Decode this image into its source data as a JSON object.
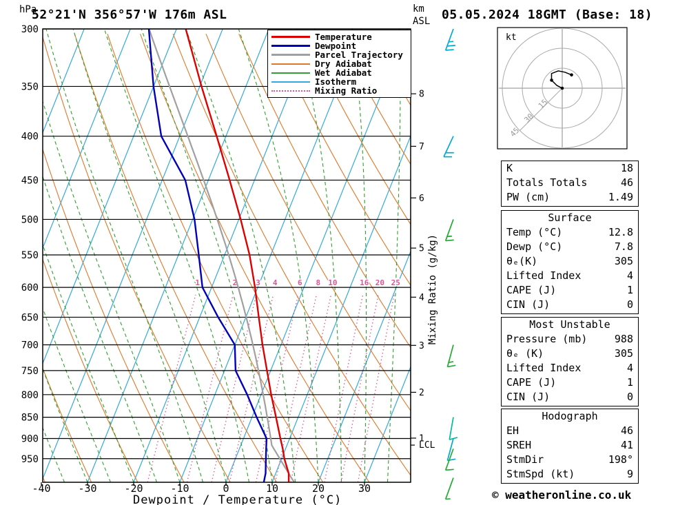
{
  "header": {
    "station_title": "52°21'N 356°57'W 176m ASL",
    "datetime_title": "05.05.2024 18GMT (Base: 18)",
    "pressure_unit": "hPa",
    "altitude_unit_km": "km",
    "altitude_unit_asl": "ASL"
  },
  "footer": {
    "copyright": "© weatheronline.co.uk"
  },
  "axes": {
    "x_title": "Dewpoint / Temperature (°C)",
    "y_right_title": "Mixing Ratio (g/kg)",
    "pressure_ticks_hpa": [
      300,
      350,
      400,
      450,
      500,
      550,
      600,
      650,
      700,
      750,
      800,
      850,
      900,
      950
    ],
    "temp_ticks_c": [
      -40,
      -30,
      -20,
      -10,
      0,
      10,
      20,
      30
    ],
    "km_ticks": [
      1,
      2,
      3,
      4,
      5,
      6,
      7,
      8
    ],
    "lcl_label": "LCL"
  },
  "legend": [
    {
      "label": "Temperature",
      "color": "#dd0000",
      "style": "solid",
      "weight": 3
    },
    {
      "label": "Dewpoint",
      "color": "#0000bb",
      "style": "solid",
      "weight": 3
    },
    {
      "label": "Parcel Trajectory",
      "color": "#a0a0a0",
      "style": "solid",
      "weight": 3
    },
    {
      "label": "Dry Adiabat",
      "color": "#e07828",
      "style": "solid",
      "weight": 2
    },
    {
      "label": "Wet Adiabat",
      "color": "#2da02d",
      "style": "solid",
      "weight": 2
    },
    {
      "label": "Isotherm",
      "color": "#33aadd",
      "style": "solid",
      "weight": 2
    },
    {
      "label": "Mixing Ratio",
      "color": "#dd5599",
      "style": "dotted",
      "weight": 2
    }
  ],
  "colors": {
    "temperature": "#dd0000",
    "dewpoint": "#0000bb",
    "parcel": "#a0a0a0",
    "dry_adiabat": "#e07828",
    "wet_adiabat": "#2da02d",
    "isotherm": "#33aadd",
    "mixing_ratio": "#dd5599",
    "grid": "#000000"
  },
  "chart_data": {
    "type": "skewt-log-p-sounding",
    "pressure_range_hpa": [
      300,
      1012
    ],
    "temp_axis_range_c": [
      -40,
      40
    ],
    "temperature_profile_p_t": [
      [
        1012,
        13.6
      ],
      [
        988,
        12.8
      ],
      [
        950,
        10.6
      ],
      [
        925,
        9.4
      ],
      [
        900,
        8.0
      ],
      [
        850,
        5.2
      ],
      [
        800,
        2.2
      ],
      [
        750,
        -0.8
      ],
      [
        700,
        -4.0
      ],
      [
        650,
        -7.2
      ],
      [
        600,
        -10.6
      ],
      [
        550,
        -14.6
      ],
      [
        500,
        -19.6
      ],
      [
        450,
        -25.4
      ],
      [
        400,
        -32.0
      ],
      [
        350,
        -39.6
      ],
      [
        300,
        -48.0
      ]
    ],
    "dewpoint_profile_p_t": [
      [
        1012,
        8.2
      ],
      [
        988,
        7.8
      ],
      [
        950,
        6.6
      ],
      [
        925,
        5.8
      ],
      [
        900,
        5.0
      ],
      [
        850,
        1.0
      ],
      [
        800,
        -3.0
      ],
      [
        750,
        -7.6
      ],
      [
        700,
        -10.0
      ],
      [
        650,
        -16.0
      ],
      [
        600,
        -22.0
      ],
      [
        550,
        -25.6
      ],
      [
        500,
        -29.6
      ],
      [
        450,
        -35.0
      ],
      [
        400,
        -44.0
      ],
      [
        350,
        -50.0
      ],
      [
        300,
        -56.0
      ]
    ],
    "parcel_surface": {
      "pressure_hpa": 988,
      "temp_c": 12.8,
      "dewpoint_c": 7.8
    },
    "lcl_pressure_hpa": 916,
    "isotherm_step_c": 10,
    "dry_adiabat_step_c": 10,
    "wet_adiabat_step_c": 5,
    "mixing_ratio_lines_gkg": [
      1,
      2,
      3,
      4,
      6,
      8,
      10,
      16,
      20,
      25
    ],
    "wind_barbs": [
      {
        "pressure_hpa": 300,
        "speed_kt": 25,
        "dir_deg": 200,
        "color": "#00aacc"
      },
      {
        "pressure_hpa": 400,
        "speed_kt": 20,
        "dir_deg": 205,
        "color": "#00aacc"
      },
      {
        "pressure_hpa": 500,
        "speed_kt": 15,
        "dir_deg": 200,
        "color": "#22aa33"
      },
      {
        "pressure_hpa": 700,
        "speed_kt": 15,
        "dir_deg": 195,
        "color": "#22aa33"
      },
      {
        "pressure_hpa": 850,
        "speed_kt": 10,
        "dir_deg": 190,
        "color": "#00bb99"
      },
      {
        "pressure_hpa": 900,
        "speed_kt": 10,
        "dir_deg": 195,
        "color": "#00aacc"
      },
      {
        "pressure_hpa": 925,
        "speed_kt": 10,
        "dir_deg": 200,
        "color": "#22aa33"
      },
      {
        "pressure_hpa": 1000,
        "speed_kt": 5,
        "dir_deg": 200,
        "color": "#22aa33"
      }
    ],
    "hodograph": {
      "unit_label": "kt",
      "rings_kt": [
        15,
        30,
        45
      ],
      "trace_uv_kt": [
        [
          0,
          0
        ],
        [
          -4,
          2
        ],
        [
          -8,
          6
        ],
        [
          -8,
          11
        ],
        [
          -3,
          13
        ],
        [
          2,
          12
        ],
        [
          7,
          10
        ]
      ],
      "dots_uv_kt": [
        [
          0,
          0
        ],
        [
          -8,
          6
        ],
        [
          7,
          10
        ]
      ]
    }
  },
  "tables": [
    {
      "header": "",
      "rows": [
        [
          "K",
          "18"
        ],
        [
          "Totals Totals",
          "46"
        ],
        [
          "PW (cm)",
          "1.49"
        ]
      ]
    },
    {
      "header": "Surface",
      "rows": [
        [
          "Temp (°C)",
          "12.8"
        ],
        [
          "Dewp (°C)",
          "7.8"
        ],
        [
          "θₑ(K)",
          "305"
        ],
        [
          "Lifted Index",
          "4"
        ],
        [
          "CAPE (J)",
          "1"
        ],
        [
          "CIN (J)",
          "0"
        ]
      ]
    },
    {
      "header": "Most Unstable",
      "rows": [
        [
          "Pressure (mb)",
          "988"
        ],
        [
          "θₑ (K)",
          "305"
        ],
        [
          "Lifted Index",
          "4"
        ],
        [
          "CAPE (J)",
          "1"
        ],
        [
          "CIN (J)",
          "0"
        ]
      ]
    },
    {
      "header": "Hodograph",
      "rows": [
        [
          "EH",
          "46"
        ],
        [
          "SREH",
          "41"
        ],
        [
          "StmDir",
          "198°"
        ],
        [
          "StmSpd (kt)",
          "9"
        ]
      ]
    }
  ]
}
